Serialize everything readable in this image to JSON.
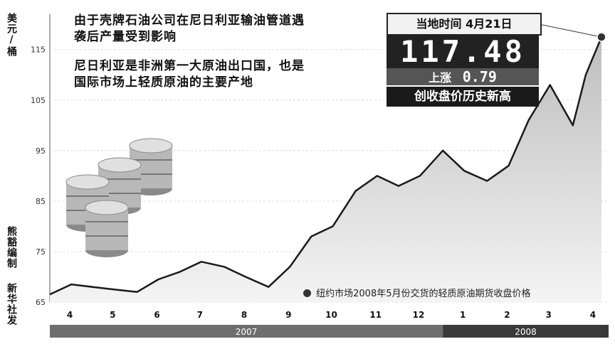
{
  "unit_label": "美元/桶",
  "credit": "熊豁编制",
  "source": "新华社发",
  "headline_1": "由于壳牌石油公司在尼日利亚输油管道遇袭后产量受到影响",
  "headline_2": "尼日利亚是非洲第一大原油出口国，也是国际市场上轻质原油的主要产地",
  "callout": {
    "time_label": "当地时间 4月21日",
    "price": "117.48",
    "rise_label": "上涨",
    "rise_value": "0.79",
    "record": "创收盘价历史新高"
  },
  "legend_text": "纽约市场2008年5月份交货的轻质原油期货收盘价格",
  "colors": {
    "line": "#1a1a1a",
    "area_top": "#bdbdbd",
    "area_bottom": "#f4f4f4",
    "bar_2007": "#6e6e6e",
    "bar_2008": "#3a3a3a"
  },
  "chart_data": {
    "type": "line",
    "title": "",
    "xlabel": "",
    "ylabel": "美元/桶",
    "ylim": [
      65,
      122
    ],
    "yticks": [
      65,
      75,
      85,
      95,
      105,
      115
    ],
    "months": [
      "4",
      "5",
      "6",
      "7",
      "8",
      "9",
      "10",
      "11",
      "12",
      "1",
      "2",
      "3",
      "4"
    ],
    "years": [
      {
        "label": "2007",
        "months": 9
      },
      {
        "label": "2008",
        "months": 4
      }
    ],
    "x": [
      "2007-04-01",
      "2007-04-16",
      "2007-05-01",
      "2007-05-16",
      "2007-06-01",
      "2007-06-16",
      "2007-07-01",
      "2007-07-16",
      "2007-08-01",
      "2007-08-16",
      "2007-09-01",
      "2007-09-16",
      "2007-10-01",
      "2007-10-16",
      "2007-11-01",
      "2007-11-16",
      "2007-12-01",
      "2007-12-16",
      "2008-01-01",
      "2008-01-16",
      "2008-02-01",
      "2008-02-16",
      "2008-03-01",
      "2008-03-16",
      "2008-04-01",
      "2008-04-10",
      "2008-04-21"
    ],
    "series": [
      {
        "values": [
          66.5,
          68.5,
          68,
          67.5,
          67,
          69.5,
          71,
          73,
          72,
          70,
          68,
          72,
          78,
          80,
          87,
          90,
          88,
          90,
          95,
          91,
          89,
          92,
          101,
          108,
          100,
          110,
          117.48
        ]
      }
    ]
  }
}
